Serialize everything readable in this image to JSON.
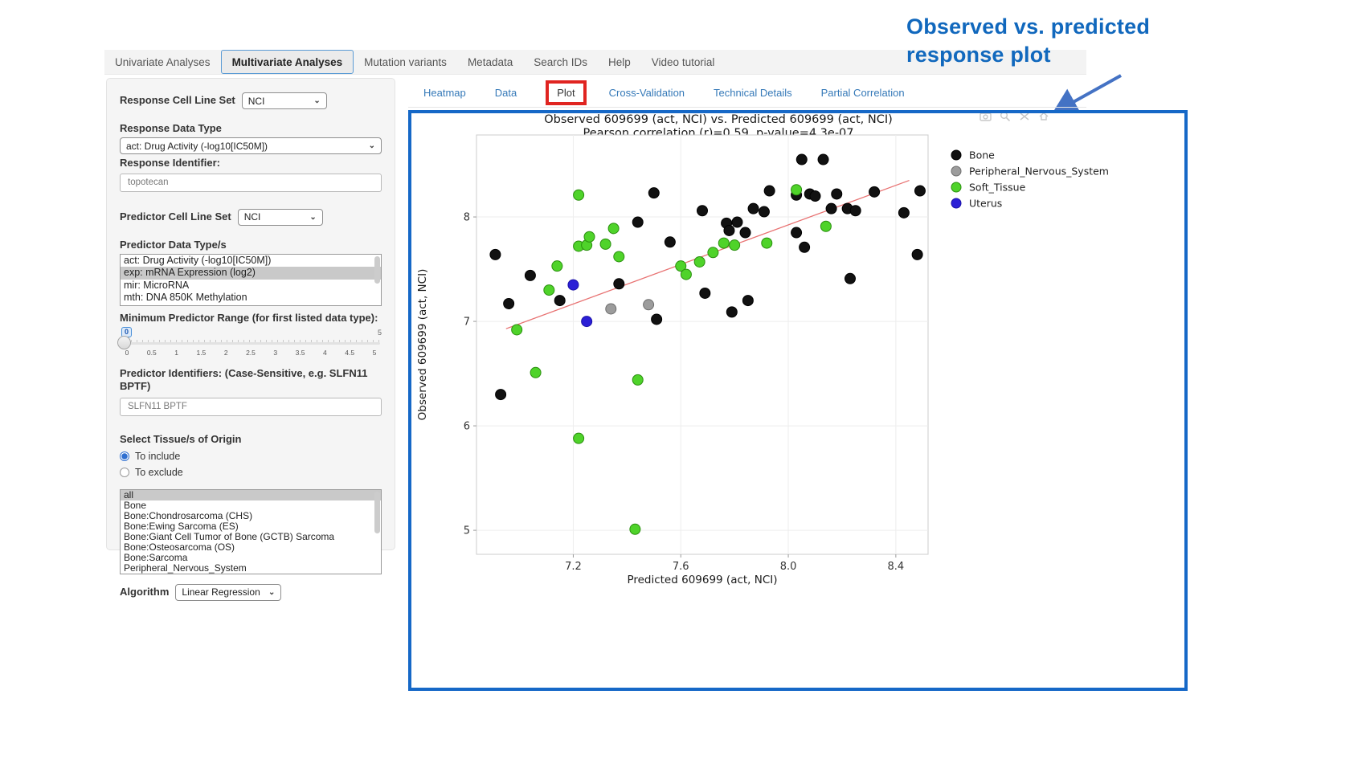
{
  "topnav": {
    "tabs": [
      {
        "label": "Univariate Analyses",
        "active": false
      },
      {
        "label": "Multivariate Analyses",
        "active": true
      },
      {
        "label": "Mutation variants",
        "active": false
      },
      {
        "label": "Metadata",
        "active": false
      },
      {
        "label": "Search IDs",
        "active": false
      },
      {
        "label": "Help",
        "active": false
      },
      {
        "label": "Video tutorial",
        "active": false
      }
    ]
  },
  "annotation": {
    "line1": "Observed  vs. predicted",
    "line2": "response plot",
    "color": "#1168bd",
    "arrow_color": "#4472c4"
  },
  "sidebar": {
    "response_cell_line_set": {
      "label": "Response Cell Line Set",
      "value": "NCI"
    },
    "response_data_type": {
      "label": "Response Data Type",
      "value": "act: Drug Activity (-log10[IC50M])"
    },
    "response_identifier": {
      "label": "Response Identifier:",
      "value": "topotecan"
    },
    "predictor_cell_line_set": {
      "label": "Predictor Cell Line Set",
      "value": "NCI"
    },
    "predictor_data_types": {
      "label": "Predictor Data Type/s",
      "options": [
        "act: Drug Activity (-log10[IC50M])",
        "exp: mRNA Expression (log2)",
        "mir: MicroRNA",
        "mth: DNA 850K Methylation"
      ],
      "selected_index": 1
    },
    "min_predictor_range": {
      "label": "Minimum Predictor Range (for first listed data type):",
      "value": "0",
      "max": "5",
      "ticks": [
        "0",
        "0.5",
        "1",
        "1.5",
        "2",
        "2.5",
        "3",
        "3.5",
        "4",
        "4.5",
        "5"
      ]
    },
    "predictor_identifiers": {
      "label": "Predictor Identifiers: (Case-Sensitive, e.g. SLFN11 BPTF)",
      "value": "SLFN11 BPTF"
    },
    "tissue": {
      "label": "Select Tissue/s of Origin",
      "radio_include": "To include",
      "radio_exclude": "To exclude",
      "include_checked": true,
      "options": [
        "all",
        "Bone",
        "Bone:Chondrosarcoma (CHS)",
        "Bone:Ewing Sarcoma (ES)",
        "Bone:Giant Cell Tumor of Bone (GCTB) Sarcoma",
        "Bone:Osteosarcoma (OS)",
        "Bone:Sarcoma",
        "Peripheral_Nervous_System"
      ],
      "selected_index": 0
    },
    "algorithm": {
      "label": "Algorithm",
      "value": "Linear Regression"
    }
  },
  "main_tabs": {
    "tabs": [
      {
        "label": "Heatmap",
        "active": false,
        "highlighted": false
      },
      {
        "label": "Data",
        "active": false,
        "highlighted": false
      },
      {
        "label": "Plot",
        "active": true,
        "highlighted": true
      },
      {
        "label": "Cross-Validation",
        "active": false,
        "highlighted": false
      },
      {
        "label": "Technical Details",
        "active": false,
        "highlighted": false
      },
      {
        "label": "Partial Correlation",
        "active": false,
        "highlighted": false
      }
    ]
  },
  "modebar": {
    "icons": [
      "camera-icon",
      "zoom-icon",
      "pan-icon",
      "home-icon"
    ]
  },
  "chart_data": {
    "type": "scatter",
    "title": "Observed 609699 (act, NCI) vs. Predicted 609699 (act, NCI)",
    "subtitle": "Pearson correlation (r)=0.59, p-value=4.3e-07",
    "xlabel": "Predicted 609699 (act, NCI)",
    "ylabel": "Observed 609699 (act, NCI)",
    "xlim": [
      6.84,
      8.52
    ],
    "ylim": [
      4.77,
      8.785
    ],
    "xticks": [
      7.2,
      7.6,
      8.0,
      8.4
    ],
    "yticks": [
      5,
      6,
      7,
      8
    ],
    "grid": true,
    "legend_position": "right-top-outside",
    "series": [
      {
        "name": "Bone",
        "color": "#111111",
        "stroke": "#000000",
        "points": [
          [
            6.91,
            7.64
          ],
          [
            6.96,
            7.17
          ],
          [
            6.93,
            6.3
          ],
          [
            7.04,
            7.44
          ],
          [
            7.15,
            7.2
          ],
          [
            7.37,
            7.36
          ],
          [
            7.44,
            7.95
          ],
          [
            7.5,
            8.23
          ],
          [
            7.51,
            7.02
          ],
          [
            7.56,
            7.76
          ],
          [
            7.68,
            8.06
          ],
          [
            7.69,
            7.27
          ],
          [
            7.77,
            7.94
          ],
          [
            7.78,
            7.87
          ],
          [
            7.81,
            7.95
          ],
          [
            7.84,
            7.85
          ],
          [
            7.79,
            7.09
          ],
          [
            7.85,
            7.2
          ],
          [
            7.87,
            8.08
          ],
          [
            7.91,
            8.05
          ],
          [
            7.93,
            8.25
          ],
          [
            8.03,
            8.21
          ],
          [
            8.03,
            7.85
          ],
          [
            8.05,
            8.55
          ],
          [
            8.13,
            8.55
          ],
          [
            8.06,
            7.71
          ],
          [
            8.08,
            8.22
          ],
          [
            8.1,
            8.2
          ],
          [
            8.16,
            8.08
          ],
          [
            8.18,
            8.22
          ],
          [
            8.22,
            8.08
          ],
          [
            8.25,
            8.06
          ],
          [
            8.23,
            7.41
          ],
          [
            8.32,
            8.24
          ],
          [
            8.43,
            8.04
          ],
          [
            8.48,
            7.64
          ],
          [
            8.49,
            8.25
          ]
        ]
      },
      {
        "name": "Peripheral_Nervous_System",
        "color": "#9c9c9c",
        "stroke": "#6e6e6e",
        "points": [
          [
            7.34,
            7.12
          ],
          [
            7.48,
            7.16
          ]
        ]
      },
      {
        "name": "Soft_Tissue",
        "color": "#4fd32a",
        "stroke": "#2a8f0e",
        "points": [
          [
            7.22,
            8.21
          ],
          [
            6.99,
            6.92
          ],
          [
            7.06,
            6.51
          ],
          [
            7.11,
            7.3
          ],
          [
            7.14,
            7.53
          ],
          [
            7.22,
            7.72
          ],
          [
            7.25,
            7.73
          ],
          [
            7.26,
            7.81
          ],
          [
            7.32,
            7.74
          ],
          [
            7.35,
            7.89
          ],
          [
            7.37,
            7.62
          ],
          [
            7.22,
            5.88
          ],
          [
            7.44,
            6.44
          ],
          [
            7.43,
            5.01
          ],
          [
            7.6,
            7.53
          ],
          [
            7.62,
            7.45
          ],
          [
            7.67,
            7.57
          ],
          [
            7.72,
            7.66
          ],
          [
            7.76,
            7.75
          ],
          [
            7.8,
            7.73
          ],
          [
            7.92,
            7.75
          ],
          [
            8.03,
            8.26
          ],
          [
            8.14,
            7.91
          ]
        ]
      },
      {
        "name": "Uterus",
        "color": "#2b1fd6",
        "stroke": "#1b12a8",
        "points": [
          [
            7.2,
            7.35
          ],
          [
            7.25,
            7.0
          ]
        ]
      }
    ],
    "trendline": {
      "color": "#e87272",
      "x1": 6.95,
      "y1": 6.93,
      "x2": 8.45,
      "y2": 8.35
    }
  }
}
